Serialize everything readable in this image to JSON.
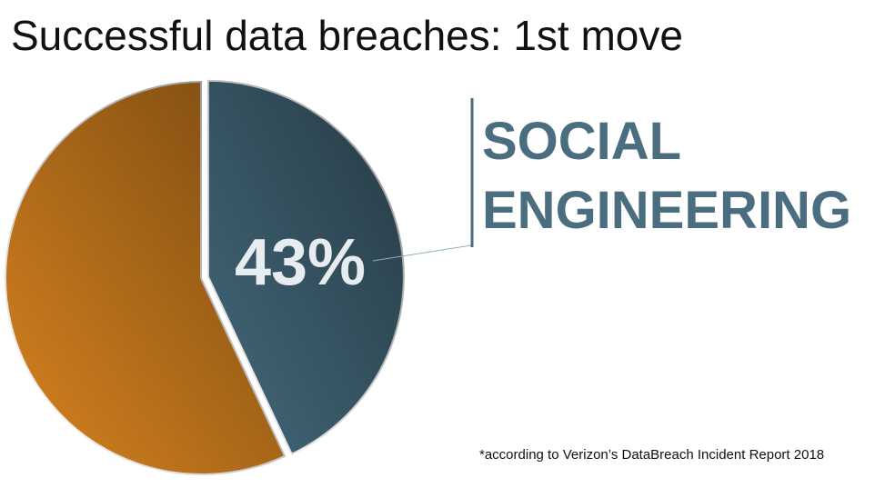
{
  "chart_data": {
    "type": "pie",
    "title": "Successful data breaches: 1st move",
    "categories": [
      "SOCIAL ENGINEERING",
      null
    ],
    "values": [
      43,
      57
    ],
    "value_labels": [
      "43%",
      null
    ],
    "colors": [
      "#44697b",
      "#d9841f"
    ],
    "annotation": "*according to Verizon’s DataBreach Incident Report 2018"
  }
}
